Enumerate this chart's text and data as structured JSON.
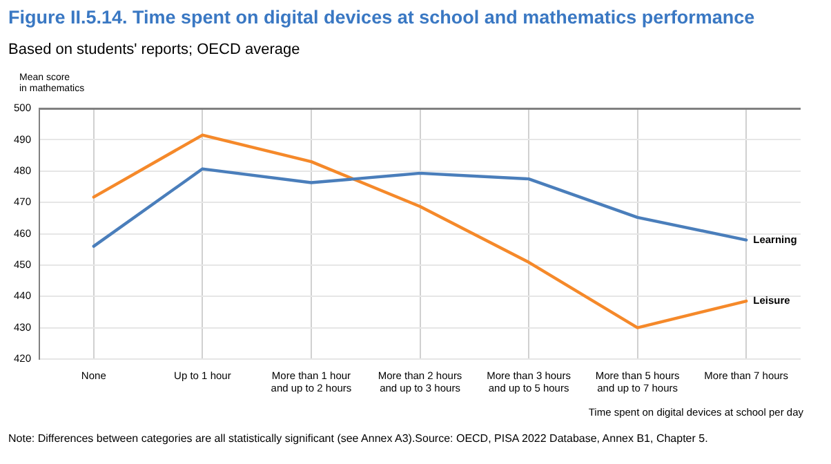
{
  "chart_data": {
    "type": "line",
    "title": "Figure II.5.14. Time spent on digital devices at school and mathematics performance",
    "subtitle": "Based on students' reports; OECD average",
    "ylabel": "Mean score\nin mathematics",
    "xlabel": "Time spent on digital devices at school per day",
    "categories": [
      "None",
      "Up to 1 hour",
      "More than 1 hour\nand up to 2 hours",
      "More than 2 hours\nand up to 3 hours",
      "More than 3 hours\nand up to 5 hours",
      "More than 5 hours\nand up to 7 hours",
      "More than 7 hours"
    ],
    "series": [
      {
        "name": "Learning",
        "color": "#4a7ebb",
        "values": [
          456,
          480.7,
          476.3,
          479.3,
          477.5,
          465.2,
          458
        ]
      },
      {
        "name": "Leisure",
        "color": "#f5892a",
        "values": [
          471.7,
          491.5,
          483,
          468.7,
          450.9,
          430,
          438.5
        ]
      }
    ],
    "ylim": [
      420,
      500
    ],
    "yticks": [
      420,
      430,
      440,
      450,
      460,
      470,
      480,
      490,
      500
    ],
    "grid": true,
    "legend": false,
    "marker": "none",
    "line_style": "solid",
    "annotations": [
      "Note: Differences between categories are all statistically significant (see Annex A3).Source: OECD, PISA 2022 Database, Annex B1, Chapter 5."
    ]
  }
}
